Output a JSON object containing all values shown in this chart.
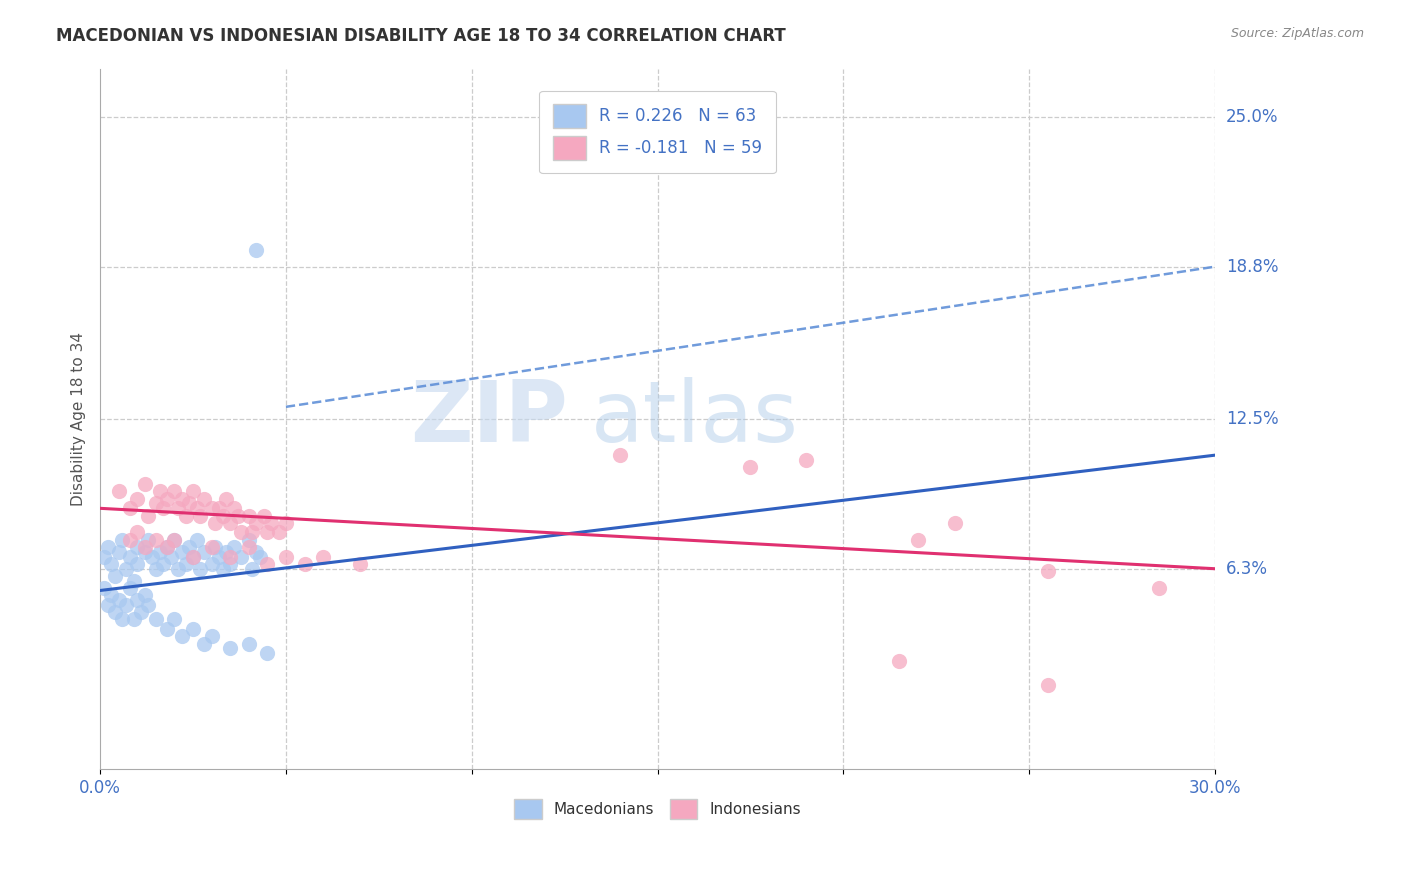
{
  "title": "MACEDONIAN VS INDONESIAN DISABILITY AGE 18 TO 34 CORRELATION CHART",
  "source": "Source: ZipAtlas.com",
  "ylabel": "Disability Age 18 to 34",
  "xlim": [
    0.0,
    0.3
  ],
  "ylim": [
    -0.02,
    0.27
  ],
  "ytick_labels_right": [
    "25.0%",
    "18.8%",
    "12.5%",
    "6.3%"
  ],
  "ytick_values_right": [
    0.25,
    0.188,
    0.125,
    0.063
  ],
  "macedonian_color": "#a8c8f0",
  "indonesian_color": "#f5a8c0",
  "macedonian_line_color": "#3060c0",
  "indonesian_line_color": "#e03070",
  "trendline_dash_color": "#6090d8",
  "background_color": "#ffffff",
  "grid_color": "#cccccc",
  "watermark_zip": "ZIP",
  "watermark_atlas": "atlas",
  "macedonian_points": [
    [
      0.001,
      0.068
    ],
    [
      0.002,
      0.072
    ],
    [
      0.003,
      0.065
    ],
    [
      0.004,
      0.06
    ],
    [
      0.005,
      0.07
    ],
    [
      0.006,
      0.075
    ],
    [
      0.007,
      0.063
    ],
    [
      0.008,
      0.068
    ],
    [
      0.009,
      0.058
    ],
    [
      0.01,
      0.072
    ],
    [
      0.01,
      0.065
    ],
    [
      0.012,
      0.07
    ],
    [
      0.013,
      0.075
    ],
    [
      0.014,
      0.068
    ],
    [
      0.015,
      0.063
    ],
    [
      0.016,
      0.07
    ],
    [
      0.017,
      0.065
    ],
    [
      0.018,
      0.072
    ],
    [
      0.019,
      0.068
    ],
    [
      0.02,
      0.075
    ],
    [
      0.021,
      0.063
    ],
    [
      0.022,
      0.07
    ],
    [
      0.023,
      0.065
    ],
    [
      0.024,
      0.072
    ],
    [
      0.025,
      0.068
    ],
    [
      0.026,
      0.075
    ],
    [
      0.027,
      0.063
    ],
    [
      0.028,
      0.07
    ],
    [
      0.03,
      0.065
    ],
    [
      0.031,
      0.072
    ],
    [
      0.032,
      0.068
    ],
    [
      0.033,
      0.063
    ],
    [
      0.034,
      0.07
    ],
    [
      0.035,
      0.065
    ],
    [
      0.036,
      0.072
    ],
    [
      0.038,
      0.068
    ],
    [
      0.04,
      0.075
    ],
    [
      0.041,
      0.063
    ],
    [
      0.042,
      0.07
    ],
    [
      0.043,
      0.068
    ],
    [
      0.001,
      0.055
    ],
    [
      0.002,
      0.048
    ],
    [
      0.003,
      0.052
    ],
    [
      0.004,
      0.045
    ],
    [
      0.005,
      0.05
    ],
    [
      0.006,
      0.042
    ],
    [
      0.007,
      0.048
    ],
    [
      0.008,
      0.055
    ],
    [
      0.009,
      0.042
    ],
    [
      0.01,
      0.05
    ],
    [
      0.011,
      0.045
    ],
    [
      0.012,
      0.052
    ],
    [
      0.013,
      0.048
    ],
    [
      0.015,
      0.042
    ],
    [
      0.018,
      0.038
    ],
    [
      0.02,
      0.042
    ],
    [
      0.022,
      0.035
    ],
    [
      0.025,
      0.038
    ],
    [
      0.028,
      0.032
    ],
    [
      0.03,
      0.035
    ],
    [
      0.035,
      0.03
    ],
    [
      0.04,
      0.032
    ],
    [
      0.045,
      0.028
    ],
    [
      0.042,
      0.195
    ]
  ],
  "indonesian_points": [
    [
      0.005,
      0.095
    ],
    [
      0.008,
      0.088
    ],
    [
      0.01,
      0.092
    ],
    [
      0.012,
      0.098
    ],
    [
      0.013,
      0.085
    ],
    [
      0.015,
      0.09
    ],
    [
      0.016,
      0.095
    ],
    [
      0.017,
      0.088
    ],
    [
      0.018,
      0.092
    ],
    [
      0.02,
      0.095
    ],
    [
      0.021,
      0.088
    ],
    [
      0.022,
      0.092
    ],
    [
      0.023,
      0.085
    ],
    [
      0.024,
      0.09
    ],
    [
      0.025,
      0.095
    ],
    [
      0.026,
      0.088
    ],
    [
      0.027,
      0.085
    ],
    [
      0.028,
      0.092
    ],
    [
      0.03,
      0.088
    ],
    [
      0.031,
      0.082
    ],
    [
      0.032,
      0.088
    ],
    [
      0.033,
      0.085
    ],
    [
      0.034,
      0.092
    ],
    [
      0.035,
      0.082
    ],
    [
      0.036,
      0.088
    ],
    [
      0.037,
      0.085
    ],
    [
      0.038,
      0.078
    ],
    [
      0.04,
      0.085
    ],
    [
      0.041,
      0.078
    ],
    [
      0.042,
      0.082
    ],
    [
      0.044,
      0.085
    ],
    [
      0.045,
      0.078
    ],
    [
      0.046,
      0.082
    ],
    [
      0.048,
      0.078
    ],
    [
      0.05,
      0.082
    ],
    [
      0.008,
      0.075
    ],
    [
      0.01,
      0.078
    ],
    [
      0.012,
      0.072
    ],
    [
      0.015,
      0.075
    ],
    [
      0.018,
      0.072
    ],
    [
      0.02,
      0.075
    ],
    [
      0.025,
      0.068
    ],
    [
      0.03,
      0.072
    ],
    [
      0.035,
      0.068
    ],
    [
      0.04,
      0.072
    ],
    [
      0.045,
      0.065
    ],
    [
      0.05,
      0.068
    ],
    [
      0.055,
      0.065
    ],
    [
      0.06,
      0.068
    ],
    [
      0.07,
      0.065
    ],
    [
      0.14,
      0.11
    ],
    [
      0.175,
      0.105
    ],
    [
      0.22,
      0.075
    ],
    [
      0.23,
      0.082
    ],
    [
      0.255,
      0.062
    ],
    [
      0.285,
      0.055
    ],
    [
      0.215,
      0.025
    ],
    [
      0.255,
      0.015
    ],
    [
      0.19,
      0.108
    ]
  ],
  "mac_trendline": [
    0.0,
    0.054,
    0.3,
    0.11
  ],
  "ind_trendline": [
    0.0,
    0.088,
    0.3,
    0.063
  ],
  "dash_line": [
    0.05,
    0.13,
    0.3,
    0.188
  ]
}
